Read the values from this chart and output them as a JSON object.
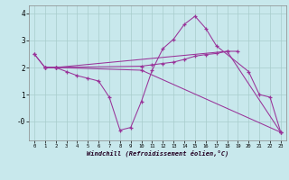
{
  "background_color": "#c8e8ec",
  "grid_color": "#a8cccc",
  "line_color": "#993399",
  "xlabel": "Windchill (Refroidissement éolien,°C)",
  "xlim": [
    -0.5,
    23.5
  ],
  "ylim": [
    -0.7,
    4.3
  ],
  "xticks": [
    0,
    1,
    2,
    3,
    4,
    5,
    6,
    7,
    8,
    9,
    10,
    11,
    12,
    13,
    14,
    15,
    16,
    17,
    18,
    19,
    20,
    21,
    22,
    23
  ],
  "yticks": [
    0,
    1,
    2,
    3,
    4
  ],
  "ytick_labels": [
    "-0",
    "1",
    "2",
    "3",
    "4"
  ],
  "curves": [
    {
      "x": [
        0,
        1,
        2,
        3,
        4,
        5,
        6,
        7,
        8,
        9,
        10,
        11,
        12,
        13,
        14,
        15,
        16,
        17,
        20,
        21,
        22,
        23
      ],
      "y": [
        2.5,
        2.0,
        2.0,
        1.85,
        1.7,
        1.6,
        1.5,
        0.9,
        -0.32,
        -0.22,
        0.75,
        1.9,
        2.7,
        3.05,
        3.6,
        3.9,
        3.45,
        2.8,
        1.85,
        1.0,
        0.9,
        -0.4
      ]
    },
    {
      "x": [
        1,
        2,
        10,
        11,
        12,
        13,
        14,
        15,
        16,
        17,
        18,
        19
      ],
      "y": [
        2.0,
        2.0,
        2.05,
        2.1,
        2.15,
        2.2,
        2.3,
        2.42,
        2.48,
        2.52,
        2.6,
        2.6
      ]
    },
    {
      "x": [
        1,
        2,
        10,
        23
      ],
      "y": [
        2.0,
        2.0,
        1.9,
        -0.4
      ]
    },
    {
      "x": [
        0,
        1,
        2,
        18,
        23
      ],
      "y": [
        2.5,
        2.0,
        2.0,
        2.6,
        -0.4
      ]
    }
  ]
}
